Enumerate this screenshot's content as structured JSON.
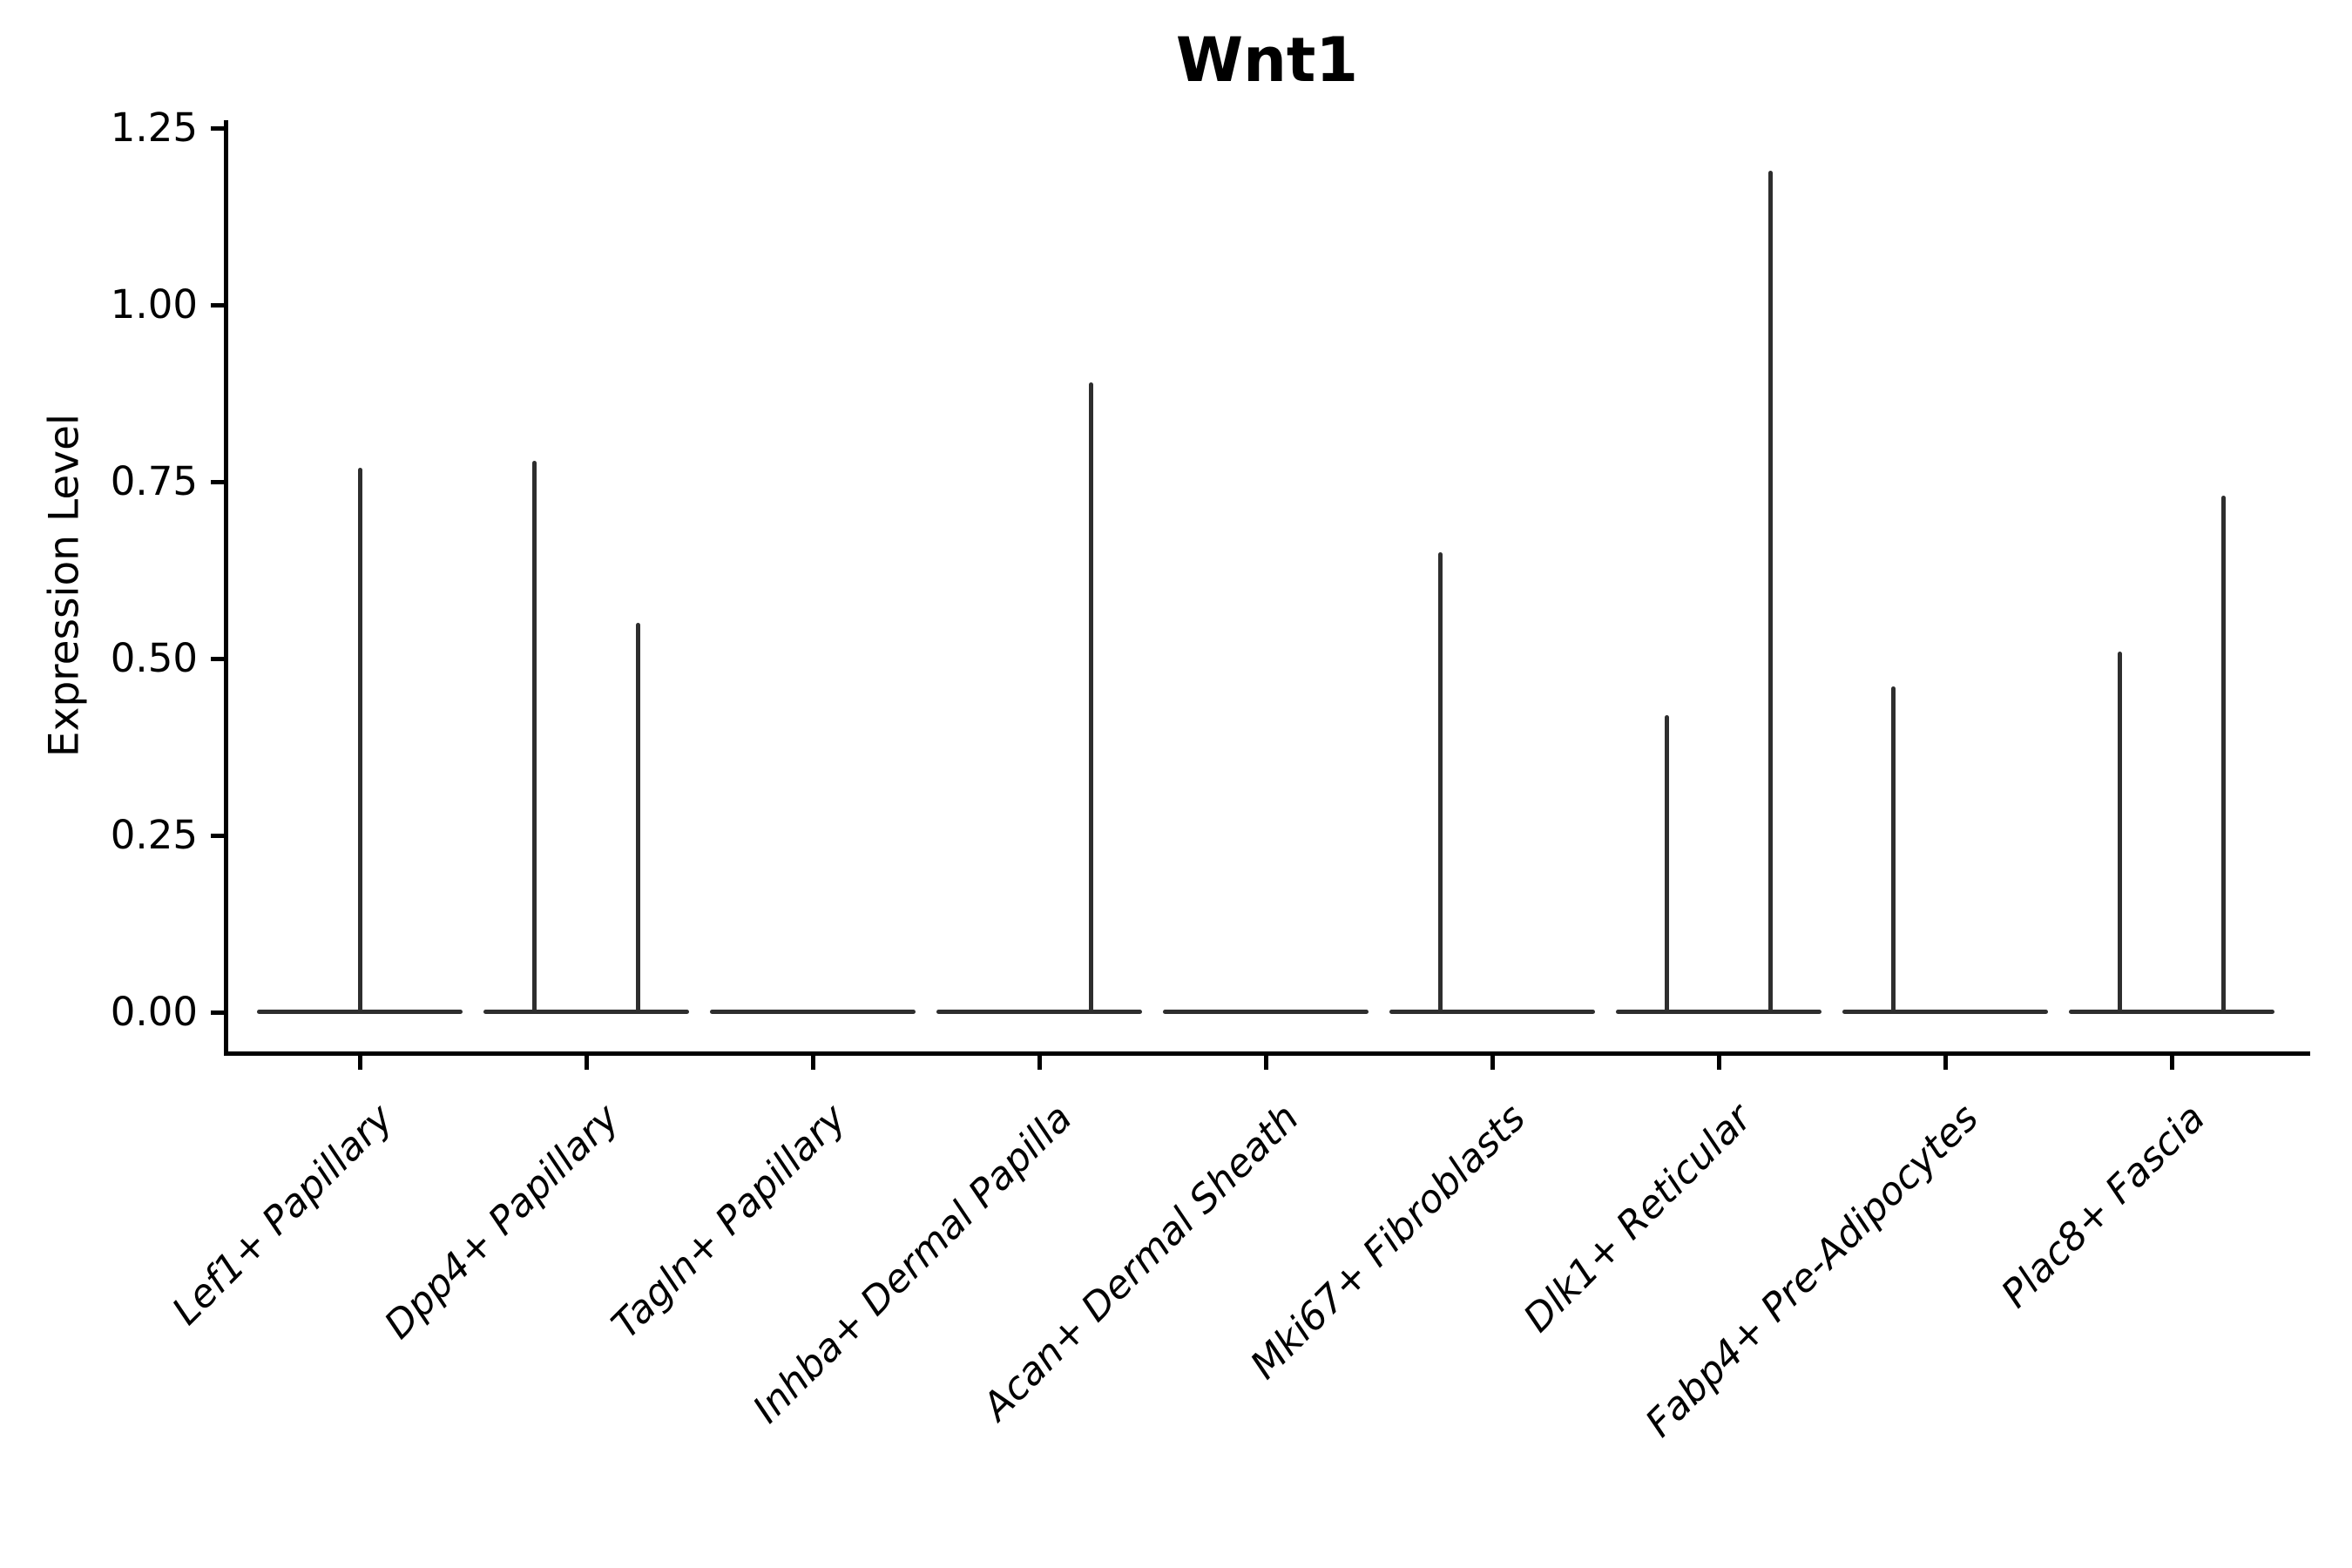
{
  "title": "Wnt1",
  "axes": {
    "ylabel": "Expression Level",
    "ytick_labels": [
      "0.00",
      "0.25",
      "0.50",
      "0.75",
      "1.00",
      "1.25"
    ]
  },
  "colors": {
    "violin_stroke": "#2e2e2e",
    "axis": "#000000",
    "background": "#ffffff"
  },
  "chart_data": {
    "type": "violin",
    "title": "Wnt1",
    "xlabel": "",
    "ylabel": "Expression Level",
    "ylim": [
      0,
      1.25
    ],
    "yticks": [
      0.0,
      0.25,
      0.5,
      0.75,
      1.0,
      1.25
    ],
    "grid": false,
    "legend": "none",
    "categories": [
      "Lef1+ Papillary",
      "Dpp4+ Papillary",
      "Tagln+ Papillary",
      "Inhba+ Dermal Papilla",
      "Acan+ Dermal Sheath",
      "Mki67+ Fibroblasts",
      "Dlk1+ Reticular",
      "Fabp4+ Pre-Adipocytes",
      "Plac8+ Fascia"
    ],
    "description": "Each category shows a collapsed violin: a wide horizontal baseline at expression 0 plus thin vertical density spikes; spike offset is the horizontal shift (fraction of category slot) from the category center, max is the top expression value of that spike.",
    "violins": [
      {
        "label": "Lef1+ Papillary",
        "baseline": 0,
        "spikes": [
          {
            "offset": 0.0,
            "max": 0.77
          }
        ]
      },
      {
        "label": "Dpp4+ Papillary",
        "baseline": 0,
        "spikes": [
          {
            "offset": -0.227,
            "max": 0.78
          },
          {
            "offset": 0.227,
            "max": 0.55
          }
        ]
      },
      {
        "label": "Tagln+ Papillary",
        "baseline": 0,
        "spikes": []
      },
      {
        "label": "Inhba+ Dermal Papilla",
        "baseline": 0,
        "spikes": [
          {
            "offset": 0.227,
            "max": 0.89
          }
        ]
      },
      {
        "label": "Acan+ Dermal Sheath",
        "baseline": 0,
        "spikes": []
      },
      {
        "label": "Mki67+ Fibroblasts",
        "baseline": 0,
        "spikes": [
          {
            "offset": -0.227,
            "max": 0.65
          }
        ]
      },
      {
        "label": "Dlk1+ Reticular",
        "baseline": 0,
        "spikes": [
          {
            "offset": -0.227,
            "max": 0.42
          },
          {
            "offset": 0.227,
            "max": 1.19
          }
        ]
      },
      {
        "label": "Fabp4+ Pre-Adipocytes",
        "baseline": 0,
        "spikes": [
          {
            "offset": -0.227,
            "max": 0.46
          }
        ]
      },
      {
        "label": "Plac8+ Fascia",
        "baseline": 0,
        "spikes": [
          {
            "offset": -0.227,
            "max": 0.51
          },
          {
            "offset": 0.227,
            "max": 0.73
          }
        ]
      }
    ]
  }
}
